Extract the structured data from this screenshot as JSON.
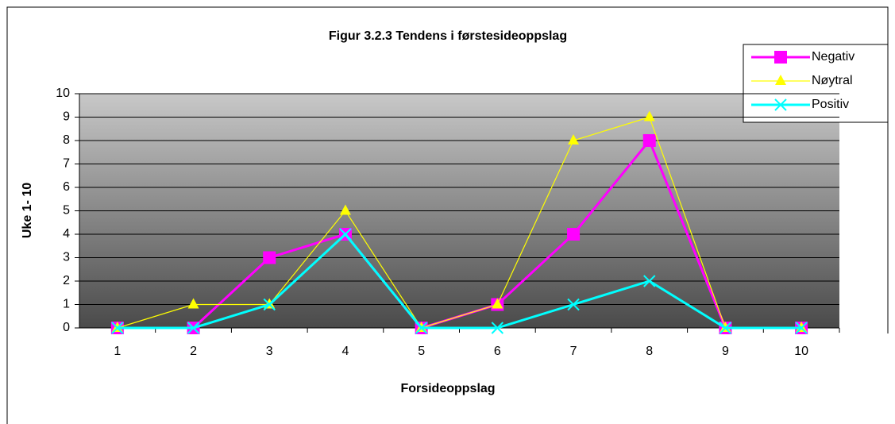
{
  "chart_data": {
    "type": "line",
    "title": "Figur 3.2.3 Tendens i førstesideoppslag",
    "x_label": "Forsideoppslag",
    "y_label": "Uke 1- 10",
    "categories": [
      "1",
      "2",
      "3",
      "4",
      "5",
      "6",
      "7",
      "8",
      "9",
      "10"
    ],
    "series": [
      {
        "name": "Negativ",
        "color": "#ff00ff",
        "marker": "square",
        "values": [
          0,
          0,
          3,
          4,
          0,
          1,
          4,
          8,
          0,
          0
        ]
      },
      {
        "name": "Nøytral",
        "color": "#ffff00",
        "marker": "triangle",
        "values": [
          0,
          1,
          1,
          5,
          0,
          1,
          8,
          9,
          0,
          0
        ]
      },
      {
        "name": "Positiv",
        "color": "#00ffff",
        "marker": "x",
        "values": [
          0,
          0,
          1,
          4,
          0,
          0,
          1,
          2,
          0,
          0
        ]
      }
    ],
    "ylim": [
      0,
      10
    ],
    "yticks": [
      0,
      1,
      2,
      3,
      4,
      5,
      6,
      7,
      8,
      9,
      10
    ],
    "grid": true,
    "legend": "top-right"
  }
}
